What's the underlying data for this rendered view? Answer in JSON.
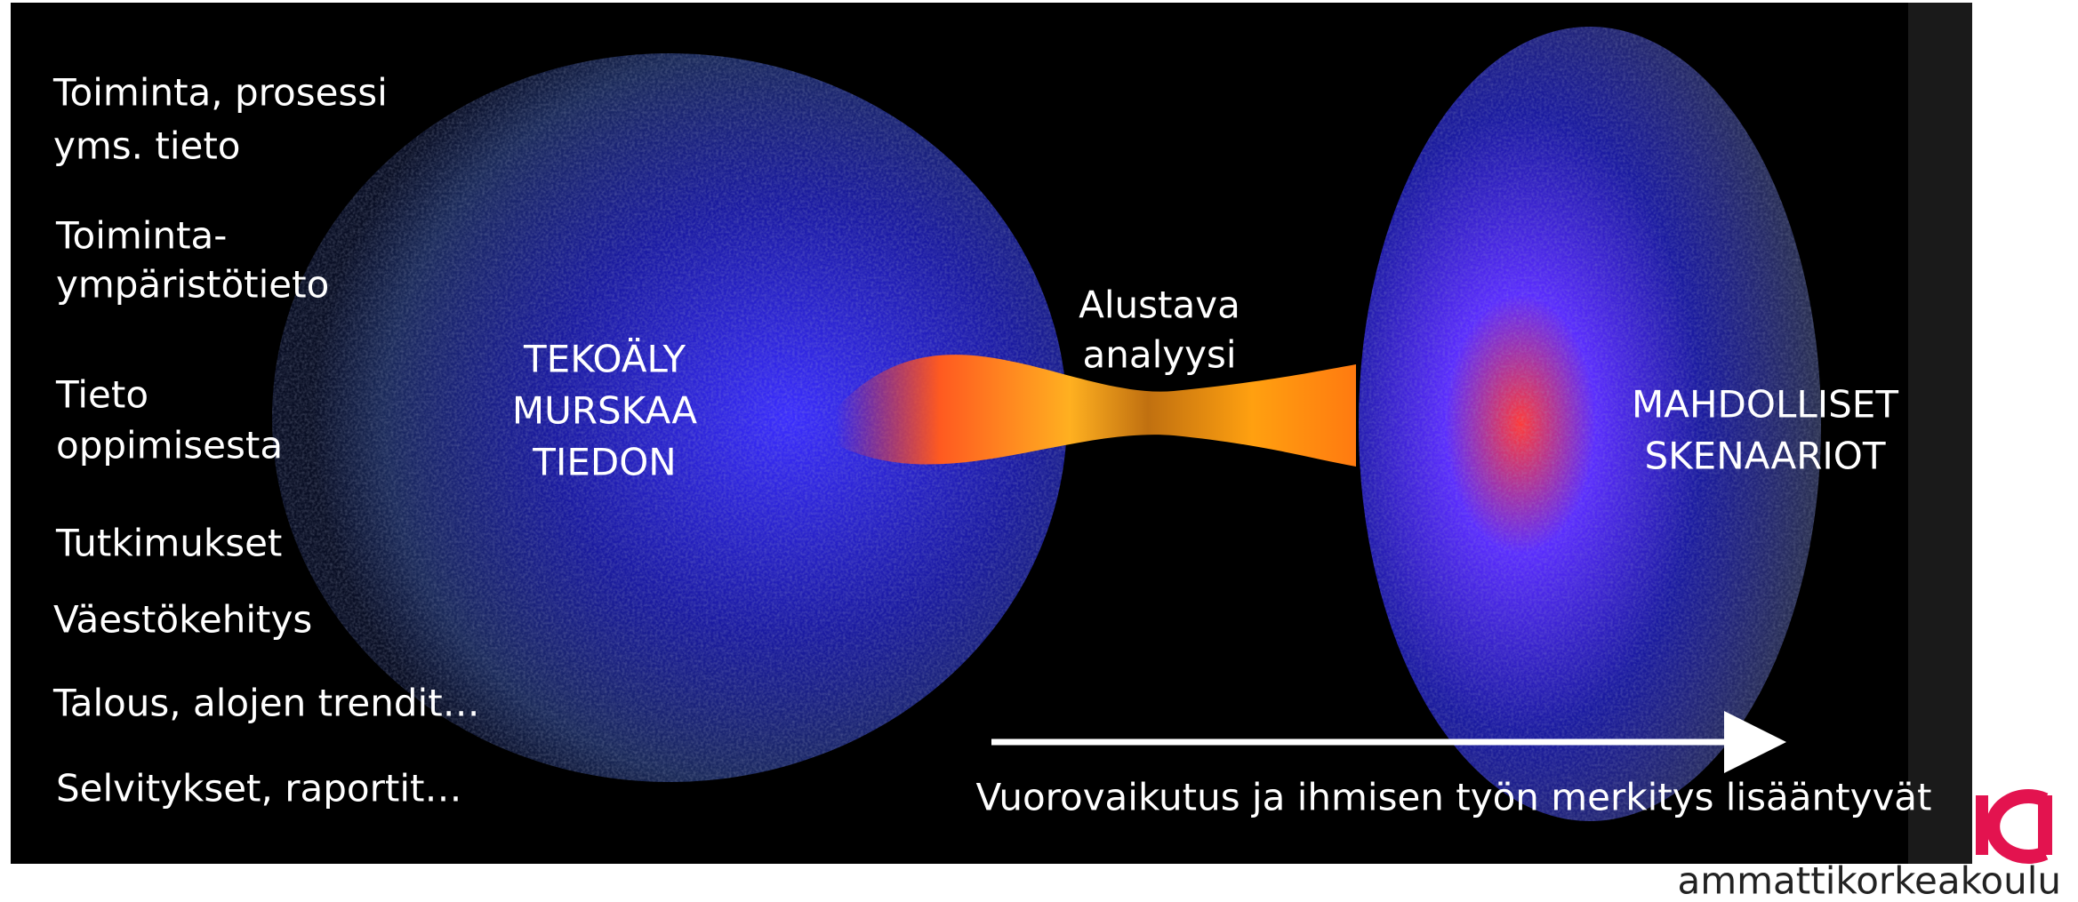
{
  "left_items": [
    {
      "lines": [
        "Toiminta, prosessi",
        "yms. tieto"
      ]
    },
    {
      "lines": [
        "Toiminta-",
        "ympäristötieto"
      ]
    },
    {
      "lines": [
        "Tieto",
        "oppimisesta"
      ]
    },
    {
      "lines": [
        "Tutkimukset"
      ]
    },
    {
      "lines": [
        "Väestökehitys"
      ]
    },
    {
      "lines": [
        "Talous, alojen trendit…"
      ]
    },
    {
      "lines": [
        "Selvitykset, raportit…"
      ]
    }
  ],
  "left_sphere_label": [
    "TEKOÄLY",
    "MURSKAA",
    "TIEDON"
  ],
  "middle_label": [
    "Alustava",
    "analyysi"
  ],
  "right_sphere_label": [
    "MAHDOLLISET",
    "SKENAARIOT"
  ],
  "arrow_caption": "Vuorovaikutus ja ihmisen työn merkitys lisääntyvät",
  "logo_text": "ammattikorkeakoulu"
}
